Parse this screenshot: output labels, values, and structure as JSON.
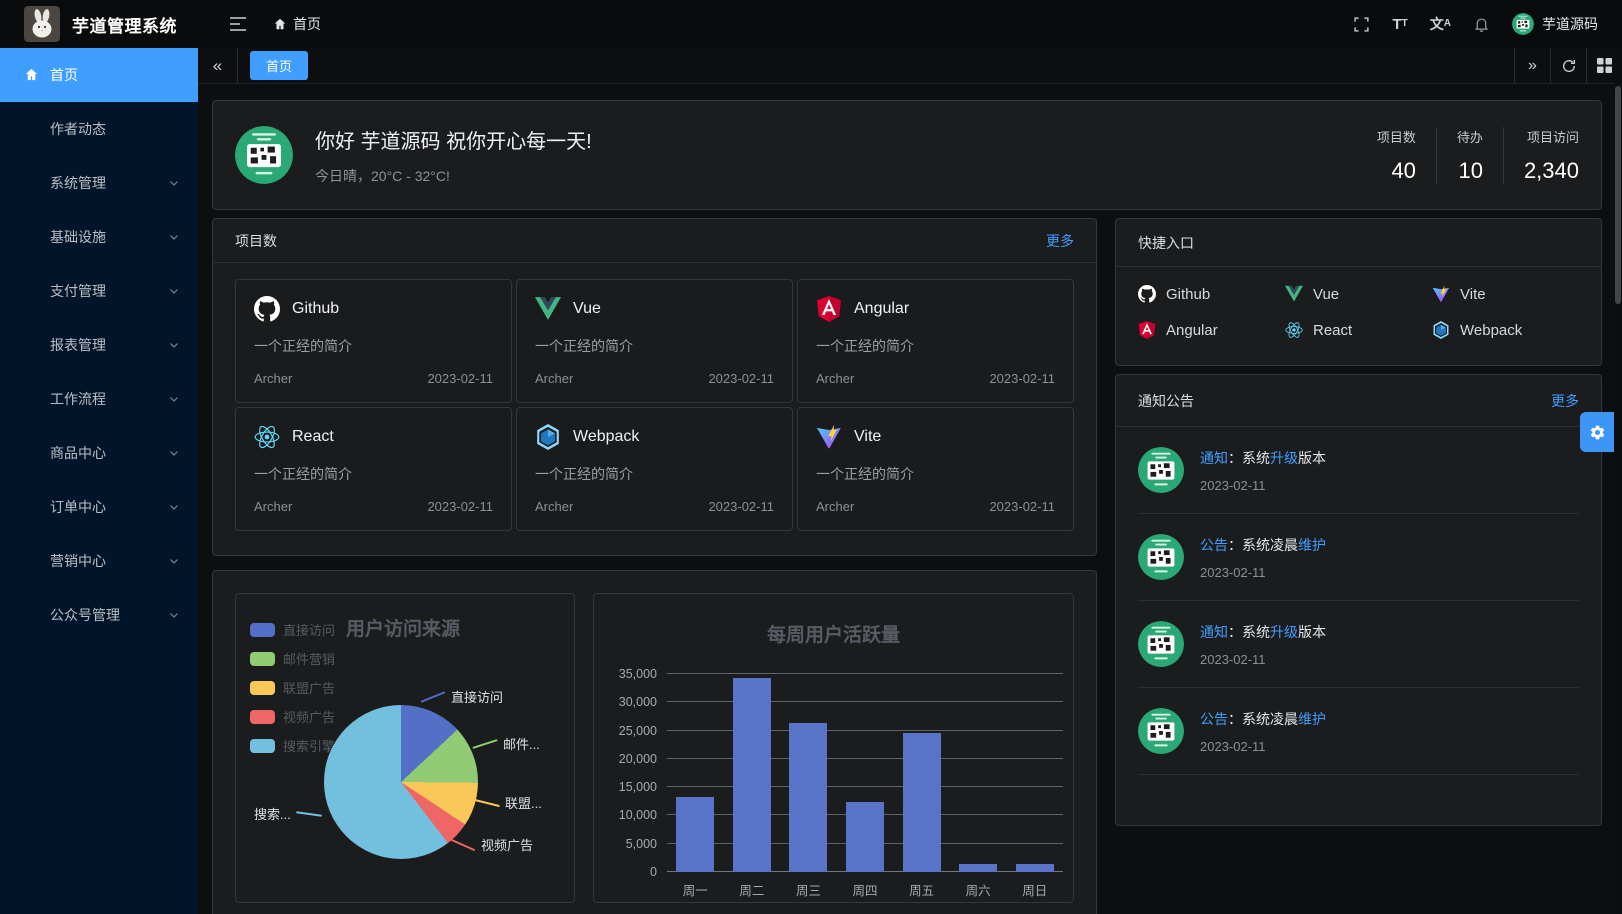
{
  "header": {
    "title": "芋道管理系统",
    "breadcrumb": "首页",
    "username": "芋道源码",
    "icons": [
      "menu-fold-icon",
      "home-icon",
      "fullscreen-icon",
      "font-size-icon",
      "language-icon",
      "bell-icon"
    ]
  },
  "sidebar": {
    "items": [
      {
        "label": "首页",
        "active": true,
        "icon": "home",
        "has_children": false
      },
      {
        "label": "作者动态",
        "active": false,
        "icon": null,
        "has_children": false
      },
      {
        "label": "系统管理",
        "active": false,
        "icon": null,
        "has_children": true
      },
      {
        "label": "基础设施",
        "active": false,
        "icon": null,
        "has_children": true
      },
      {
        "label": "支付管理",
        "active": false,
        "icon": null,
        "has_children": true
      },
      {
        "label": "报表管理",
        "active": false,
        "icon": null,
        "has_children": true
      },
      {
        "label": "工作流程",
        "active": false,
        "icon": null,
        "has_children": true
      },
      {
        "label": "商品中心",
        "active": false,
        "icon": null,
        "has_children": true
      },
      {
        "label": "订单中心",
        "active": false,
        "icon": null,
        "has_children": true
      },
      {
        "label": "营销中心",
        "active": false,
        "icon": null,
        "has_children": true
      },
      {
        "label": "公众号管理",
        "active": false,
        "icon": null,
        "has_children": true
      }
    ]
  },
  "tabbar": {
    "collapse_icon": "«",
    "active_tab": "首页",
    "expand_icon": "»",
    "actions": [
      "refresh-icon",
      "layout-grid-icon"
    ]
  },
  "greeting": {
    "title": "你好 芋道源码 祝你开心每一天!",
    "subtitle": "今日晴，20°C - 32°C!",
    "stats": [
      {
        "label": "项目数",
        "value": "40"
      },
      {
        "label": "待办",
        "value": "10"
      },
      {
        "label": "项目访问",
        "value": "2,340"
      }
    ]
  },
  "projects": {
    "title": "项目数",
    "more": "更多",
    "cards": [
      {
        "name": "Github",
        "icon": "github",
        "desc": "一个正经的简介",
        "author": "Archer",
        "date": "2023-02-11"
      },
      {
        "name": "Vue",
        "icon": "vue",
        "desc": "一个正经的简介",
        "author": "Archer",
        "date": "2023-02-11"
      },
      {
        "name": "Angular",
        "icon": "angular",
        "desc": "一个正经的简介",
        "author": "Archer",
        "date": "2023-02-11"
      },
      {
        "name": "React",
        "icon": "react",
        "desc": "一个正经的简介",
        "author": "Archer",
        "date": "2023-02-11"
      },
      {
        "name": "Webpack",
        "icon": "webpack",
        "desc": "一个正经的简介",
        "author": "Archer",
        "date": "2023-02-11"
      },
      {
        "name": "Vite",
        "icon": "vite",
        "desc": "一个正经的简介",
        "author": "Archer",
        "date": "2023-02-11"
      }
    ]
  },
  "shortcuts": {
    "title": "快捷入口",
    "items": [
      {
        "name": "Github",
        "icon": "github"
      },
      {
        "name": "Vue",
        "icon": "vue"
      },
      {
        "name": "Vite",
        "icon": "vite"
      },
      {
        "name": "Angular",
        "icon": "angular"
      },
      {
        "name": "React",
        "icon": "react"
      },
      {
        "name": "Webpack",
        "icon": "webpack"
      }
    ]
  },
  "notices": {
    "title": "通知公告",
    "more": "更多",
    "items": [
      {
        "segments": [
          {
            "text": "通知",
            "hl": true
          },
          {
            "text": "：系统",
            "hl": false
          },
          {
            "text": "升级",
            "hl": true
          },
          {
            "text": "版本",
            "hl": false
          }
        ],
        "date": "2023-02-11"
      },
      {
        "segments": [
          {
            "text": "公告",
            "hl": true
          },
          {
            "text": "：系统凌晨",
            "hl": false
          },
          {
            "text": "维护",
            "hl": true
          }
        ],
        "date": "2023-02-11"
      },
      {
        "segments": [
          {
            "text": "通知",
            "hl": true
          },
          {
            "text": "：系统",
            "hl": false
          },
          {
            "text": "升级",
            "hl": true
          },
          {
            "text": "版本",
            "hl": false
          }
        ],
        "date": "2023-02-11"
      },
      {
        "segments": [
          {
            "text": "公告",
            "hl": true
          },
          {
            "text": "：系统凌晨",
            "hl": false
          },
          {
            "text": "维护",
            "hl": true
          }
        ],
        "date": "2023-02-11"
      }
    ]
  },
  "chart_data": [
    {
      "type": "pie",
      "title": "用户访问来源",
      "legend_position": "top-left-vertical",
      "series": [
        {
          "name": "直接访问",
          "value": 335
        },
        {
          "name": "邮件营销",
          "value": 310
        },
        {
          "name": "联盟广告",
          "value": 234
        },
        {
          "name": "视频广告",
          "value": 135
        },
        {
          "name": "搜索引擎",
          "value": 1548
        }
      ],
      "colors": [
        "#5470c6",
        "#91cc75",
        "#fac858",
        "#ee6666",
        "#73c0de"
      ],
      "callout_labels": [
        "直接访问",
        "邮件...",
        "联盟...",
        "视频广告",
        "搜索..."
      ]
    },
    {
      "type": "bar",
      "title": "每周用户活跃量",
      "categories": [
        "周一",
        "周二",
        "周三",
        "周四",
        "周五",
        "周六",
        "周日"
      ],
      "values": [
        13200,
        34300,
        26400,
        12300,
        24600,
        1400,
        1400
      ],
      "xlabel": "",
      "ylabel": "",
      "ylim": [
        0,
        35000
      ],
      "ytick_step": 5000,
      "grid": true,
      "bar_color": "#5973c8"
    }
  ]
}
